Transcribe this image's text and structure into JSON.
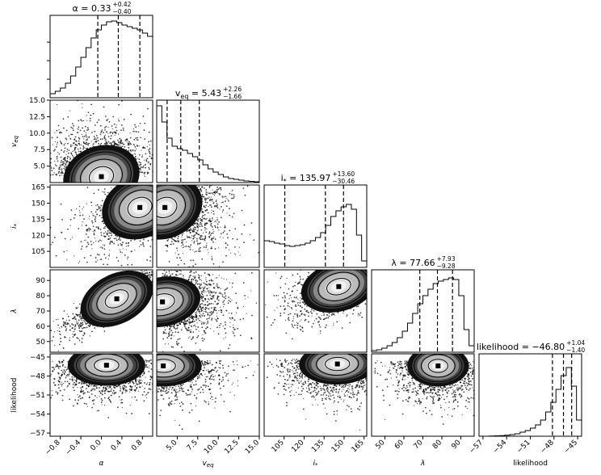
{
  "chart_data": {
    "type": "corner",
    "parameters": [
      {
        "key": "alpha",
        "label": "α",
        "range": [
          -1.0,
          1.0
        ],
        "ticks": [
          -0.8,
          -0.4,
          0.0,
          0.4,
          0.8
        ],
        "tick_labels": [
          "−0.8",
          "−0.4",
          "0.0",
          "0.4",
          "0.8"
        ],
        "title": {
          "lhs": "α = 0.33",
          "plus": "+0.42",
          "minus": "−0.40"
        },
        "quantiles": [
          -0.07,
          0.33,
          0.75
        ],
        "hist_bins": [
          0.05,
          0.08,
          0.12,
          0.18,
          0.27,
          0.38,
          0.5,
          0.62,
          0.74,
          0.84,
          0.9,
          0.94,
          0.95,
          0.93,
          0.9,
          0.88,
          0.86,
          0.84,
          0.8,
          0.76
        ]
      },
      {
        "key": "veq",
        "label": "v",
        "label_sub": "eq",
        "range": [
          2.5,
          15.0
        ],
        "ticks": [
          5.0,
          7.5,
          10.0,
          12.5,
          15.0
        ],
        "tick_labels": [
          "5.0",
          "7.5",
          "10.0",
          "12.5",
          "15.0"
        ],
        "title": {
          "lhs": "v",
          "lhs_sub": "eq",
          "rhs": " = 5.43",
          "plus": "+2.26",
          "minus": "−1.66"
        },
        "quantiles": [
          3.77,
          5.43,
          7.69
        ],
        "hist_bins": [
          0.95,
          0.75,
          0.55,
          0.45,
          0.42,
          0.4,
          0.36,
          0.32,
          0.28,
          0.22,
          0.17,
          0.13,
          0.1,
          0.07,
          0.05,
          0.04,
          0.03,
          0.02,
          0.015,
          0.01
        ]
      },
      {
        "key": "inc",
        "label": "i",
        "label_sub": "*",
        "range": [
          90,
          167
        ],
        "ticks": [
          105,
          120,
          135,
          150,
          165
        ],
        "tick_labels": [
          "105",
          "120",
          "135",
          "150",
          "165"
        ],
        "title": {
          "lhs": "i",
          "lhs_sub": "*",
          "rhs": " = 135.97",
          "plus": "+13.60",
          "minus": "−30.46"
        },
        "quantiles": [
          105.5,
          135.97,
          149.57
        ],
        "hist_bins": [
          0.33,
          0.32,
          0.3,
          0.29,
          0.27,
          0.26,
          0.27,
          0.28,
          0.3,
          0.33,
          0.37,
          0.43,
          0.52,
          0.63,
          0.7,
          0.75,
          0.78,
          0.72,
          0.4,
          0.08
        ]
      },
      {
        "key": "lambda",
        "label": "λ",
        "range": [
          43,
          97
        ],
        "ticks": [
          50,
          60,
          70,
          80,
          90
        ],
        "tick_labels": [
          "50",
          "60",
          "70",
          "80",
          "90"
        ],
        "title": {
          "lhs": "λ = 77.66",
          "plus": "+7.93",
          "minus": "−9.28"
        },
        "quantiles": [
          68.38,
          77.66,
          85.59
        ],
        "hist_bins": [
          0.02,
          0.03,
          0.05,
          0.08,
          0.12,
          0.18,
          0.26,
          0.36,
          0.48,
          0.6,
          0.7,
          0.78,
          0.85,
          0.88,
          0.9,
          0.92,
          0.9,
          0.7,
          0.28,
          0.08
        ]
      },
      {
        "key": "likelihood",
        "label": "likelihood",
        "range": [
          -57.5,
          -44.5
        ],
        "ticks": [
          -57,
          -54,
          -51,
          -48,
          -45
        ],
        "tick_labels": [
          "−57",
          "−54",
          "−51",
          "−48",
          "−45"
        ],
        "title": {
          "lhs": "likelihood = −46.80",
          "plus": "+1.04",
          "minus": "−1.40"
        },
        "quantiles": [
          -48.2,
          -46.8,
          -45.76
        ],
        "hist_bins": [
          0.0,
          0.0,
          0.002,
          0.005,
          0.008,
          0.012,
          0.02,
          0.03,
          0.05,
          0.07,
          0.1,
          0.14,
          0.2,
          0.3,
          0.42,
          0.58,
          0.75,
          0.85,
          0.62,
          0.2
        ]
      }
    ],
    "y_tick_labels": {
      "veq": [
        "5.0",
        "7.5",
        "10.0",
        "12.5",
        "15.0"
      ],
      "inc": [
        "105",
        "120",
        "135",
        "150",
        "165"
      ],
      "lambda": [
        "50",
        "60",
        "70",
        "80",
        "90"
      ],
      "likelihood": [
        "−57",
        "−54",
        "−51",
        "−48",
        "−45"
      ]
    },
    "density_peaks": {
      "alpha-veq": [
        0.0,
        3.4
      ],
      "alpha-inc": [
        0.75,
        146
      ],
      "veq-inc": [
        3.5,
        146
      ],
      "alpha-lambda": [
        0.3,
        78
      ],
      "veq-lambda": [
        3.2,
        76
      ],
      "inc-lambda": [
        146,
        86
      ],
      "alpha-likelihood": [
        0.1,
        -46.3
      ],
      "veq-likelihood": [
        3.3,
        -46.4
      ],
      "inc-likelihood": [
        145,
        -46.1
      ],
      "lambda-likelihood": [
        78,
        -46.4
      ]
    }
  }
}
